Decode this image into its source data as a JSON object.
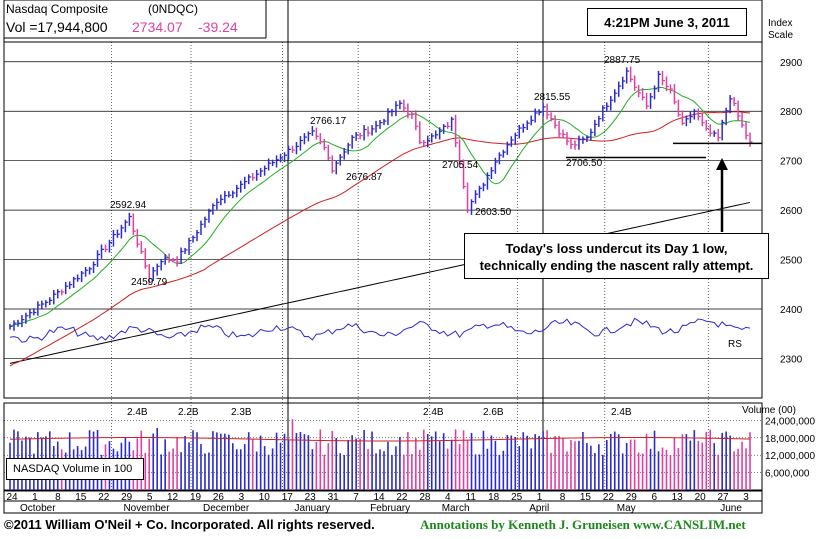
{
  "header": {
    "index_name": "Nasdaq Composite",
    "symbol": "(0NDQC)",
    "volume_text": "Vol =17,944,800",
    "price": "2734.07",
    "change": "-39.24",
    "timestamp": "4:21PM June 3, 2011",
    "scale_label_line1": "Index",
    "scale_label_line2": "Scale"
  },
  "annotation": {
    "line1": "Today's loss undercut its Day 1 low,",
    "line2": "technically ending the nascent rally attempt."
  },
  "volume_box_label": "NASDAQ Volume in 100",
  "footer": {
    "copyright": "©2011 William O'Neil + Co. Incorporated. All rights reserved.",
    "annotations": "Annotations by Kenneth J. Gruneisen  www.CANSLIM.net"
  },
  "colors": {
    "up_bar": "#2a2ad0",
    "down_bar": "#e040a0",
    "ma50": "#d02020",
    "ma10": "#20b020",
    "ma200": "#000000",
    "rs_line": "#2a2ad0",
    "grid": "#000000",
    "accent_change": "#e040a0"
  },
  "chart_data": {
    "type": "bar",
    "title": "Nasdaq Composite",
    "price_axis": {
      "ticks": [
        2300,
        2400,
        2500,
        2600,
        2700,
        2800,
        2900
      ],
      "ylim": [
        2220,
        2940
      ]
    },
    "volume_axis": {
      "label": "Volume (00)",
      "ticks": [
        "24,000,000",
        "18,000,000",
        "12,000,000",
        "6,000,000"
      ],
      "tick_values": [
        24000000,
        18000000,
        12000000,
        6000000
      ],
      "ylim": [
        0,
        30000000
      ]
    },
    "date_ticks": [
      "24",
      "1",
      "8",
      "15",
      "22",
      "29",
      "5",
      "12",
      "19",
      "26",
      "3",
      "10",
      "17",
      "23",
      "31",
      "7",
      "14",
      "22",
      "28",
      "4",
      "11",
      "18",
      "25",
      "1",
      "8",
      "15",
      "22",
      "29",
      "6",
      "13",
      "20",
      "27",
      "3"
    ],
    "months": [
      "October",
      "November",
      "December",
      "January",
      "February",
      "March",
      "April",
      "May",
      "June"
    ],
    "price_labels": [
      {
        "text": "2592.94",
        "value": 2592.94
      },
      {
        "text": "2459.79",
        "value": 2459.79
      },
      {
        "text": "2766.17",
        "value": 2766.17
      },
      {
        "text": "2676.87",
        "value": 2676.87
      },
      {
        "text": "2705.54",
        "value": 2705.54
      },
      {
        "text": "2603.50",
        "value": 2603.5
      },
      {
        "text": "2815.55",
        "value": 2815.55
      },
      {
        "text": "2706.50",
        "value": 2706.5
      },
      {
        "text": "2887.75",
        "value": 2887.75
      }
    ],
    "volume_labels": [
      "2.4B",
      "2.2B",
      "2.3B",
      "2.4B",
      "2.6B",
      "2.4B"
    ],
    "series_labels": {
      "rs": "RS"
    },
    "waypoints": [
      [
        0,
        2365
      ],
      [
        10,
        2420
      ],
      [
        20,
        2485
      ],
      [
        26,
        2545
      ],
      [
        30,
        2585
      ],
      [
        33,
        2510
      ],
      [
        35,
        2465
      ],
      [
        38,
        2500
      ],
      [
        42,
        2500
      ],
      [
        46,
        2545
      ],
      [
        52,
        2620
      ],
      [
        58,
        2650
      ],
      [
        64,
        2685
      ],
      [
        70,
        2720
      ],
      [
        76,
        2755
      ],
      [
        79,
        2725
      ],
      [
        81,
        2685
      ],
      [
        86,
        2745
      ],
      [
        92,
        2770
      ],
      [
        98,
        2815
      ],
      [
        101,
        2790
      ],
      [
        103,
        2740
      ],
      [
        107,
        2750
      ],
      [
        111,
        2780
      ],
      [
        113,
        2700
      ],
      [
        115,
        2605
      ],
      [
        118,
        2640
      ],
      [
        122,
        2700
      ],
      [
        126,
        2745
      ],
      [
        130,
        2780
      ],
      [
        134,
        2810
      ],
      [
        138,
        2760
      ],
      [
        141,
        2730
      ],
      [
        145,
        2745
      ],
      [
        148,
        2790
      ],
      [
        152,
        2840
      ],
      [
        155,
        2880
      ],
      [
        157,
        2850
      ],
      [
        160,
        2810
      ],
      [
        163,
        2870
      ],
      [
        166,
        2840
      ],
      [
        169,
        2770
      ],
      [
        172,
        2800
      ],
      [
        175,
        2760
      ],
      [
        178,
        2745
      ],
      [
        181,
        2830
      ],
      [
        184,
        2770
      ],
      [
        186,
        2735
      ]
    ],
    "volume_millions_range": [
      10,
      24
    ]
  }
}
